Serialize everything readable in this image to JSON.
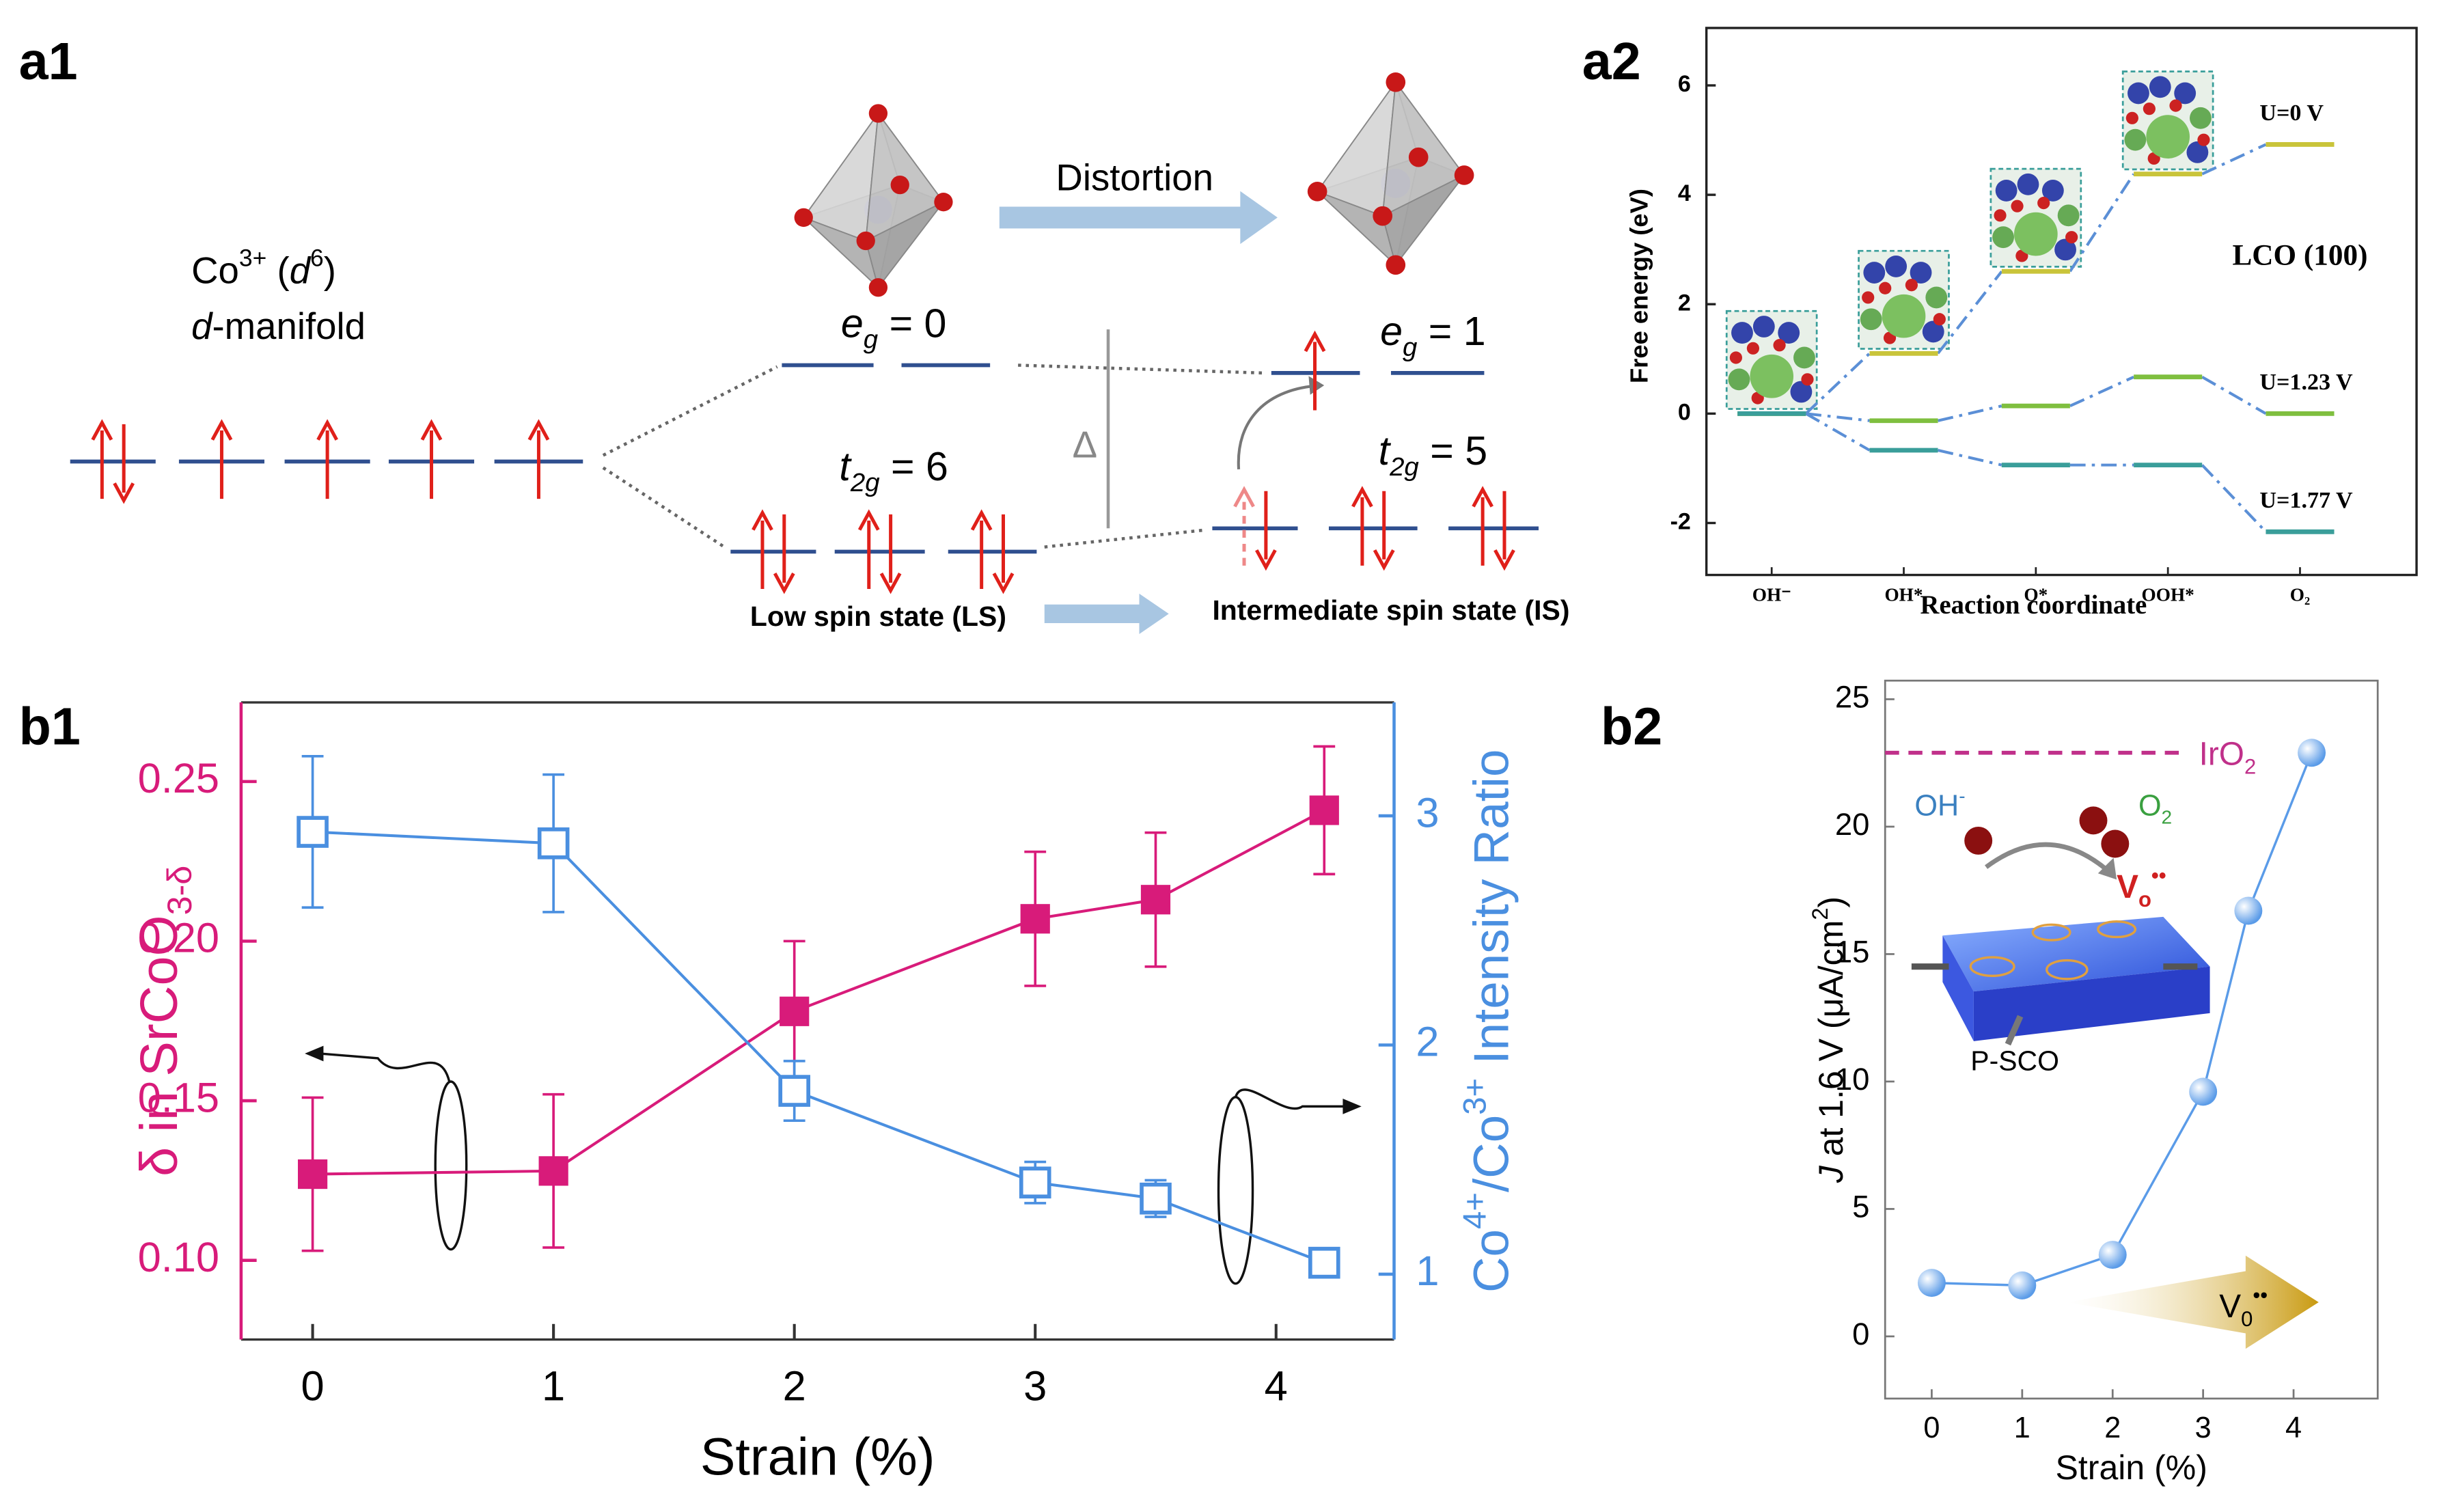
{
  "panel_labels": [
    "a1",
    "a2",
    "b1",
    "b2"
  ],
  "diagram": {
    "ion": [
      {
        "t": "Co"
      },
      {
        "t": "3+",
        "sup": true
      },
      {
        "t": " ("
      },
      {
        "t": "d",
        "i": true
      },
      {
        "t": "6",
        "sup": true
      },
      {
        "t": ")"
      }
    ],
    "manifold": [
      {
        "t": "d",
        "i": true
      },
      {
        "t": "-manifold"
      }
    ],
    "distortion": "Distortion",
    "eg_ls": [
      {
        "t": "e",
        "i": true
      },
      {
        "t": "g",
        "sub": true,
        "i": true
      },
      {
        "t": " = 0"
      }
    ],
    "t2g_ls": [
      {
        "t": "t",
        "i": true
      },
      {
        "t": "2g",
        "sub": true,
        "i": true
      },
      {
        "t": " = 6"
      }
    ],
    "eg_is": [
      {
        "t": "e",
        "i": true
      },
      {
        "t": "g",
        "sub": true,
        "i": true
      },
      {
        "t": " = 1"
      }
    ],
    "t2g_is": [
      {
        "t": "t",
        "i": true
      },
      {
        "t": "2g",
        "sub": true,
        "i": true
      },
      {
        "t": " = 5"
      }
    ],
    "gap": "Δ",
    "ls": "Low spin state (LS)",
    "is": "Intermediate spin state (IS)"
  },
  "chart_data": [
    {
      "type": "energy_levels",
      "ylabel": "Free energy (eV)",
      "xlabel": "Reaction coordinate",
      "annotation": "LCO (100)",
      "categories": [
        "OH⁻",
        "OH*",
        "O*",
        "OOH*",
        "O₂"
      ],
      "line_color": "#5b8fd6",
      "series": [
        {
          "name": "U=0 V",
          "color": "#c9c43a",
          "values": [
            0,
            1.1,
            2.6,
            4.38,
            4.92
          ]
        },
        {
          "name": "U=1.23 V",
          "color": "#7fbf3f",
          "values": [
            0,
            -0.13,
            0.14,
            0.67,
            0
          ]
        },
        {
          "name": "U=1.77 V",
          "color": "#3a9e9a",
          "values": [
            0,
            -0.67,
            -0.94,
            -0.94,
            -2.16
          ]
        }
      ],
      "ylim": [
        -2.95,
        7.05
      ],
      "yticks": [
        -2,
        0,
        2,
        4,
        6
      ]
    },
    {
      "type": "dual_scatter_line",
      "xlabel": "Strain (%)",
      "ylabel": [
        {
          "t": "δ in SrCoO"
        },
        {
          "t": "3-δ",
          "sub": true
        }
      ],
      "y2label": [
        {
          "t": "Co"
        },
        {
          "t": "4+",
          "sup": true
        },
        {
          "t": "/Co"
        },
        {
          "t": "3+",
          "sup": true
        },
        {
          "t": " Intensity Ratio"
        }
      ],
      "x": [
        0,
        1,
        2,
        3,
        3.5,
        4.2
      ],
      "xlim": [
        -0.297,
        4.49
      ],
      "xticks": [
        0,
        1,
        2,
        3,
        4
      ],
      "ylim": [
        0.0752,
        0.2748
      ],
      "yticks": [
        {
          "value": 0.1,
          "label": "0.10"
        },
        0.15,
        {
          "value": 0.2,
          "label": "0.20"
        },
        0.25
      ],
      "y2lim": [
        0.715,
        3.495
      ],
      "y2ticks": [
        1,
        2,
        3
      ],
      "series": [
        {
          "color": "#d81b7a",
          "marker": "filled_square",
          "values": [
            0.127,
            0.128,
            0.178,
            0.207,
            0.213,
            0.241
          ],
          "errors": [
            0.024,
            0.024,
            0.022,
            0.021,
            0.021,
            0.02
          ]
        },
        {
          "axis": "y2",
          "color": "#4a8fe0",
          "marker": "open_square",
          "values": [
            2.93,
            2.88,
            1.8,
            1.4,
            1.33,
            1.05
          ],
          "errors": [
            0.33,
            0.3,
            0.13,
            0.09,
            0.08,
            0.05
          ]
        }
      ]
    },
    {
      "type": "scatter_line",
      "xlabel": "Strain (%)",
      "ylabel": [
        {
          "t": "J",
          "i": true
        },
        {
          "t": " at 1.6 V (μA/cm"
        },
        {
          "t": "2",
          "sup": true
        },
        {
          "t": ")"
        }
      ],
      "x": [
        0,
        1,
        2,
        3,
        3.5,
        4.2
      ],
      "values": [
        2.1,
        2.0,
        3.2,
        9.6,
        16.7,
        22.9
      ],
      "color": "#5a9be8",
      "xlim": [
        -0.515,
        4.93
      ],
      "xticks": [
        0,
        1,
        2,
        3,
        4
      ],
      "ylim": [
        -2.44,
        25.73
      ],
      "yticks": [
        0,
        5,
        10,
        15,
        20,
        25
      ],
      "reference": {
        "label": [
          {
            "t": "IrO"
          },
          {
            "t": "2",
            "sub": true
          }
        ],
        "value": 22.9,
        "color": "#c0308a"
      },
      "inset_labels": {
        "reactant": [
          {
            "t": "OH"
          },
          {
            "t": "-",
            "sup": true
          }
        ],
        "product": [
          {
            "t": "O"
          },
          {
            "t": "2",
            "sub": true
          }
        ],
        "vacancy": [
          {
            "t": "V"
          },
          {
            "t": "o",
            "sub": true
          },
          {
            "t": "••",
            "sup": true
          }
        ],
        "film": "P-SCO",
        "arrow": [
          {
            "t": "V"
          },
          {
            "t": "0",
            "sub": true
          },
          {
            "t": "••",
            "sup": true
          }
        ]
      }
    }
  ]
}
